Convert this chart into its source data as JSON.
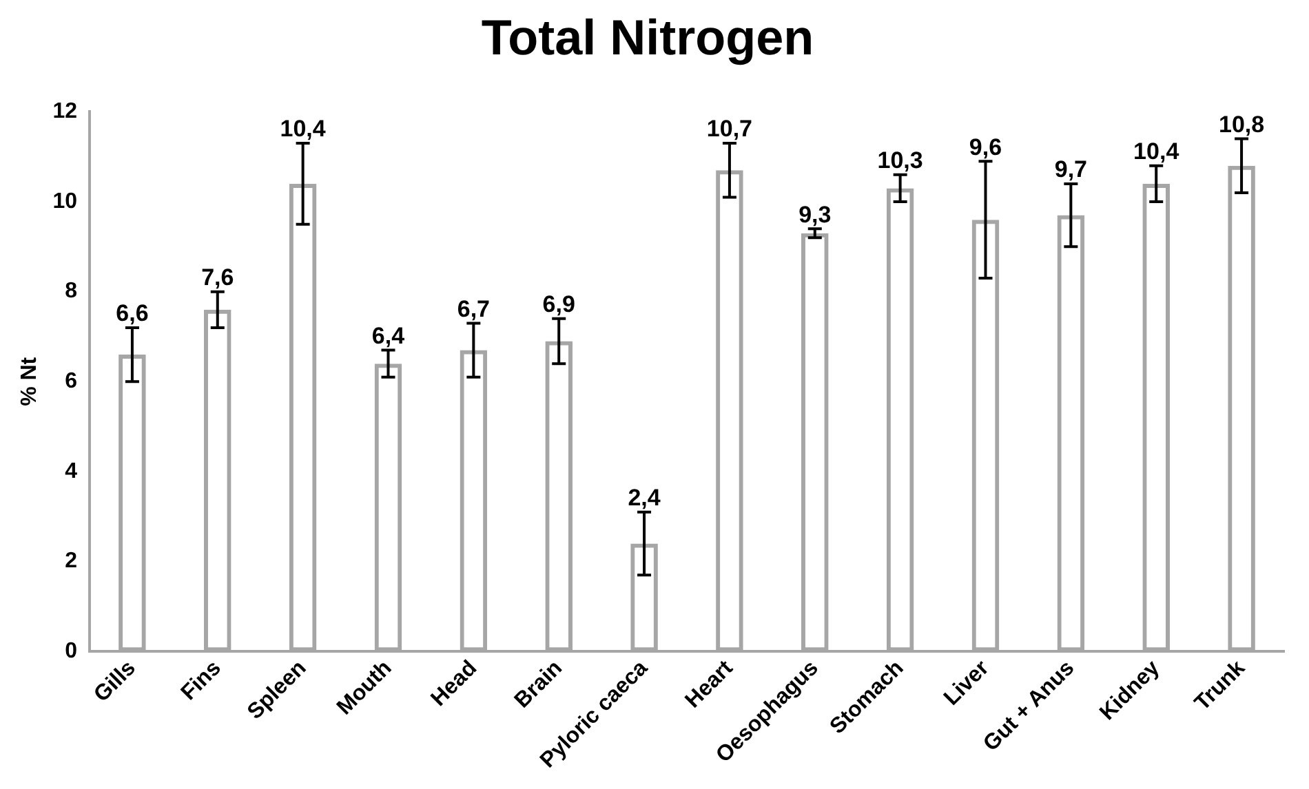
{
  "chart_data": {
    "type": "bar",
    "title": "Total Nitrogen",
    "ylabel": "% Nt",
    "categories": [
      "Gills",
      "Fins",
      "Spleen",
      "Mouth",
      "Head",
      "Brain",
      "Pyloric caeca",
      "Heart",
      "Oesophagus",
      "Stomach",
      "Liver",
      "Gut + Anus",
      "Kidney",
      "Trunk"
    ],
    "values": [
      6.6,
      7.6,
      10.4,
      6.4,
      6.7,
      6.9,
      2.4,
      10.7,
      9.3,
      10.3,
      9.6,
      9.7,
      10.4,
      10.8
    ],
    "errors": [
      0.6,
      0.4,
      0.9,
      0.3,
      0.6,
      0.5,
      0.7,
      0.6,
      0.1,
      0.3,
      1.3,
      0.7,
      0.4,
      0.6
    ],
    "value_labels": [
      "6,6",
      "7,6",
      "10,4",
      "6,4",
      "6,7",
      "6,9",
      "2,4",
      "10,7",
      "9,3",
      "10,3",
      "9,6",
      "9,7",
      "10,4",
      "10,8"
    ],
    "color": "#a6a6a6",
    "ylim": [
      0,
      12
    ],
    "yticks": [
      0,
      2,
      4,
      6,
      8,
      10,
      12
    ],
    "grid": false,
    "legend": false
  }
}
